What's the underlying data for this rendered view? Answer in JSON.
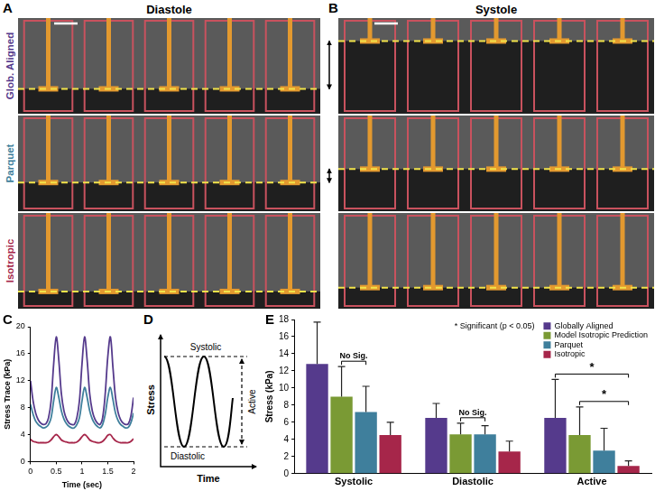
{
  "images": {
    "A": {
      "panel": "A",
      "title": "Diastole"
    },
    "B": {
      "panel": "B",
      "title": "Systole"
    },
    "rows": [
      {
        "label": "Glob. Aligned",
        "color": "#553a8c"
      },
      {
        "label": "Parquet",
        "color": "#3f7f9c"
      },
      {
        "label": "Isotropic",
        "color": "#a6264a"
      }
    ]
  },
  "schematic": {
    "panel": "D",
    "x_label": "Time",
    "y_label": "Stress",
    "peak_label": "Systolic",
    "range_label": "Active",
    "trough_label": "Diastolic"
  },
  "chart_data": [
    {
      "panel": "C",
      "type": "line",
      "x_label": "Time (sec)",
      "y_label": "Stress Trace (kPa)",
      "x": [
        0,
        0.05,
        0.1,
        0.15,
        0.2,
        0.25,
        0.3,
        0.35,
        0.4,
        0.45,
        0.5,
        0.55,
        0.6,
        0.65,
        0.7,
        0.75,
        0.8,
        0.85,
        0.9,
        0.95,
        1,
        1.05,
        1.1,
        1.15,
        1.2,
        1.25,
        1.3,
        1.35,
        1.4,
        1.45,
        1.5,
        1.55,
        1.6,
        1.65,
        1.7,
        1.75,
        1.8,
        1.85,
        1.9,
        1.95,
        2
      ],
      "series": [
        {
          "color": "#553a8c",
          "values": [
            12,
            9,
            7.2,
            6.2,
            5.7,
            5.5,
            5.6,
            6.5,
            9,
            14.5,
            18.5,
            15,
            10,
            7.5,
            6.3,
            5.7,
            5.5,
            5.5,
            6.5,
            9,
            14.5,
            18.5,
            15,
            10,
            7.5,
            6.3,
            5.7,
            5.5,
            6.5,
            10,
            15.5,
            18.5,
            14,
            9.5,
            7.3,
            6.2,
            5.7,
            5.5,
            5.6,
            6.8,
            9.5
          ]
        },
        {
          "color": "#3f7f9c",
          "values": [
            8.5,
            7,
            6,
            5.5,
            5.2,
            5.0,
            5.1,
            5.5,
            6.5,
            9,
            11,
            9.5,
            7.5,
            6.3,
            5.6,
            5.2,
            5.0,
            5.0,
            5.5,
            6.5,
            9,
            11,
            9.5,
            7.5,
            6.3,
            5.6,
            5.2,
            5.0,
            5.5,
            7,
            9.5,
            11,
            9.2,
            7.2,
            6.1,
            5.5,
            5.2,
            5.0,
            5.1,
            5.8,
            7.2
          ]
        },
        {
          "color": "#a6264a",
          "values": [
            3.3,
            3.0,
            2.9,
            2.8,
            2.8,
            2.8,
            2.8,
            2.9,
            3.2,
            3.7,
            4.0,
            3.7,
            3.2,
            3.0,
            2.9,
            2.8,
            2.8,
            2.8,
            2.9,
            3.2,
            3.7,
            4.0,
            3.7,
            3.2,
            3.0,
            2.9,
            2.8,
            2.8,
            3.0,
            3.4,
            3.9,
            4.0,
            3.5,
            3.1,
            2.9,
            2.8,
            2.8,
            2.8,
            2.8,
            3.0,
            3.4
          ]
        }
      ],
      "xlim": [
        0,
        2
      ],
      "xticks": [
        0,
        0.5,
        1,
        1.5,
        2
      ],
      "ylim": [
        0,
        20
      ],
      "yticks": [
        0,
        4,
        8,
        12,
        16,
        20
      ],
      "grid": false
    },
    {
      "panel": "E",
      "type": "bar",
      "y_label": "Stress (kPa)",
      "categories": [
        "Systolic",
        "Diastolic",
        "Active"
      ],
      "series": [
        {
          "name": "Globally Aligned",
          "color": "#553a8c",
          "values": [
            12.8,
            6.5,
            6.5
          ],
          "errors": [
            4.9,
            1.7,
            4.5
          ]
        },
        {
          "name": "Model Isotropic Prediction",
          "color": "#7a9a34",
          "values": [
            9,
            4.6,
            4.5
          ],
          "errors": [
            3.5,
            1.3,
            3.3
          ]
        },
        {
          "name": "Parquet",
          "color": "#3f7f9c",
          "values": [
            7.2,
            4.6,
            2.7
          ],
          "errors": [
            3.0,
            1.0,
            2.6
          ]
        },
        {
          "name": "Isotropic",
          "color": "#a6264a",
          "values": [
            4.5,
            2.6,
            0.9
          ],
          "errors": [
            1.5,
            1.2,
            0.6
          ]
        }
      ],
      "ylim": [
        0,
        18
      ],
      "yticks": [
        0,
        2,
        4,
        6,
        8,
        10,
        12,
        14,
        16,
        18
      ],
      "grid": false,
      "legend": "upper right",
      "annotations": [
        {
          "text": "* Significant (p < 0.05)"
        },
        {
          "text": "No Sig.",
          "category": "Systolic",
          "between": [
            "Model Isotropic Prediction",
            "Parquet"
          ]
        },
        {
          "text": "No Sig.",
          "category": "Diastolic",
          "between": [
            "Model Isotropic Prediction",
            "Parquet"
          ]
        },
        {
          "text": "*",
          "category": "Active",
          "between": [
            "Globally Aligned",
            "Isotropic"
          ]
        },
        {
          "text": "*",
          "category": "Active",
          "between": [
            "Model Isotropic Prediction",
            "Isotropic"
          ]
        }
      ]
    }
  ]
}
